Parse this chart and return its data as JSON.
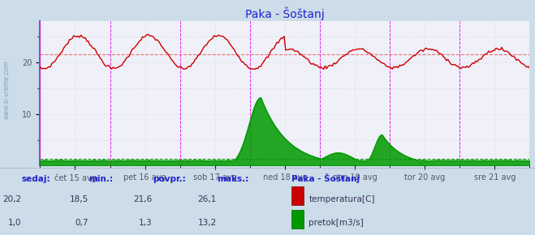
{
  "title": "Paka - Šoštanj",
  "bg_color": "#ccdce8",
  "plot_bg": "#f0f0f8",
  "x_labels": [
    "čet 15 avg",
    "pet 16 avg",
    "sob 17 avg",
    "ned 18 avg",
    "pon 19 avg",
    "tor 20 avg",
    "sre 21 avg"
  ],
  "y_ticks": [
    10,
    20
  ],
  "y_max": 28,
  "y_min": 0,
  "avg_temp": 21.6,
  "avg_flow": 1.3,
  "temp_color": "#cc0000",
  "flow_color": "#009900",
  "vline_color": "#ee00ee",
  "hline_temp_color": "#ee6666",
  "hline_flow_color": "#009900",
  "grid_color": "#bbbbcc",
  "title_color": "#2222cc",
  "label_color": "#2222cc",
  "axis_color": "#8888aa",
  "legend_title": "Paka - Šoštanj",
  "sedaj_label": "sedaj:",
  "min_label": "min.:",
  "povpr_label": "povpr.:",
  "maks_label": "maks.:",
  "temp_sedaj": "20,2",
  "temp_min": "18,5",
  "temp_povpr": "21,6",
  "temp_maks": "26,1",
  "flow_sedaj": "1,0",
  "flow_min": "0,7",
  "flow_povpr": "1,3",
  "flow_maks": "13,2",
  "temp_label": "temperatura[C]",
  "flow_label": "pretok[m3/s]",
  "n_points": 336,
  "days": 7,
  "left_watermark": "www.si-vreme.com"
}
